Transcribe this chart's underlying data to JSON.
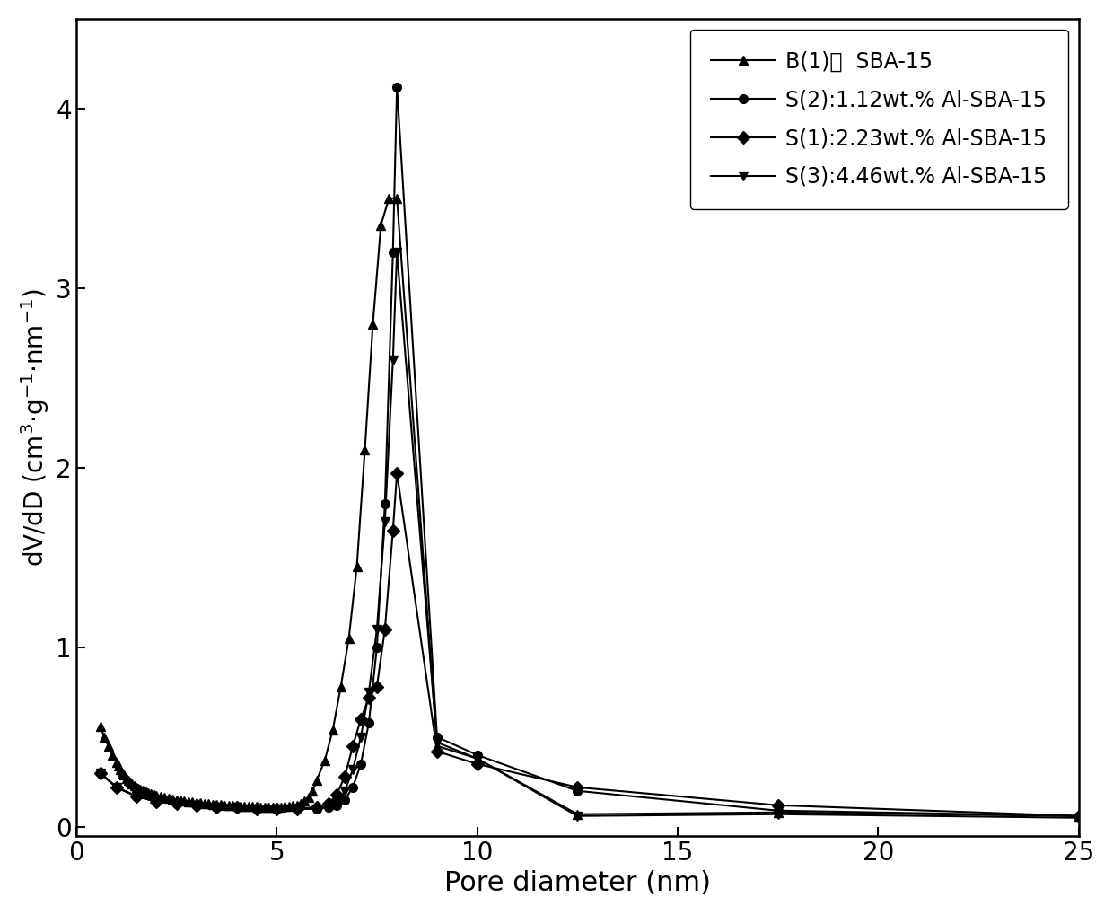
{
  "xlabel": "Pore diameter (nm)",
  "ylabel": "dV/dD (cm$^3$$\\cdot$g$^{-1}$$\\cdot$nm$^{-1}$)",
  "xlim": [
    0,
    25
  ],
  "ylim": [
    -0.05,
    4.5
  ],
  "xticks": [
    0,
    5,
    10,
    15,
    20,
    25
  ],
  "yticks": [
    0,
    1,
    2,
    3,
    4
  ],
  "legend_labels": [
    "B(1)：  SBA-15",
    "S(2):1.12wt.% Al-SBA-15",
    "S(1):2.23wt.% Al-SBA-15",
    "S(3):4.46wt.% Al-SBA-15"
  ],
  "line_color": "#000000",
  "background_color": "#ffffff",
  "B1_x": [
    0.6,
    0.7,
    0.8,
    0.9,
    1.0,
    1.05,
    1.1,
    1.15,
    1.2,
    1.25,
    1.3,
    1.35,
    1.4,
    1.45,
    1.5,
    1.55,
    1.6,
    1.65,
    1.7,
    1.75,
    1.8,
    1.85,
    1.9,
    1.95,
    2.0,
    2.1,
    2.2,
    2.3,
    2.4,
    2.5,
    2.6,
    2.7,
    2.8,
    2.9,
    3.0,
    3.1,
    3.2,
    3.3,
    3.4,
    3.5,
    3.6,
    3.7,
    3.8,
    3.9,
    4.0,
    4.1,
    4.2,
    4.3,
    4.4,
    4.5,
    4.6,
    4.7,
    4.8,
    4.9,
    5.0,
    5.1,
    5.2,
    5.3,
    5.4,
    5.5,
    5.6,
    5.7,
    5.8,
    5.9,
    6.0,
    6.2,
    6.4,
    6.6,
    6.8,
    7.0,
    7.2,
    7.4,
    7.6,
    7.8,
    8.0,
    9.0,
    10.0,
    12.5,
    17.5,
    25.0
  ],
  "B1_y": [
    0.56,
    0.5,
    0.45,
    0.4,
    0.36,
    0.34,
    0.32,
    0.3,
    0.29,
    0.27,
    0.26,
    0.25,
    0.24,
    0.23,
    0.22,
    0.215,
    0.21,
    0.205,
    0.2,
    0.195,
    0.19,
    0.185,
    0.18,
    0.178,
    0.175,
    0.17,
    0.165,
    0.16,
    0.155,
    0.15,
    0.147,
    0.144,
    0.141,
    0.138,
    0.135,
    0.132,
    0.13,
    0.128,
    0.126,
    0.124,
    0.122,
    0.12,
    0.119,
    0.118,
    0.117,
    0.116,
    0.115,
    0.114,
    0.113,
    0.112,
    0.111,
    0.11,
    0.11,
    0.11,
    0.11,
    0.111,
    0.112,
    0.114,
    0.117,
    0.121,
    0.13,
    0.145,
    0.165,
    0.2,
    0.26,
    0.37,
    0.54,
    0.78,
    1.05,
    1.45,
    2.1,
    2.8,
    3.35,
    3.5,
    3.5,
    0.45,
    0.38,
    0.07,
    0.08,
    0.06
  ],
  "S2_x": [
    0.6,
    1.0,
    1.5,
    2.0,
    2.5,
    3.0,
    3.5,
    4.0,
    4.5,
    5.0,
    5.5,
    6.0,
    6.3,
    6.5,
    6.7,
    6.9,
    7.1,
    7.3,
    7.5,
    7.7,
    7.9,
    8.0,
    9.0,
    10.0,
    12.5,
    17.5,
    25.0
  ],
  "S2_y": [
    0.3,
    0.22,
    0.17,
    0.14,
    0.13,
    0.12,
    0.11,
    0.11,
    0.1,
    0.1,
    0.1,
    0.1,
    0.11,
    0.12,
    0.15,
    0.22,
    0.35,
    0.58,
    1.0,
    1.8,
    3.2,
    4.12,
    0.5,
    0.4,
    0.2,
    0.09,
    0.06
  ],
  "S1_x": [
    0.6,
    1.0,
    1.5,
    2.0,
    2.5,
    3.0,
    3.5,
    4.0,
    4.5,
    5.0,
    5.5,
    6.0,
    6.3,
    6.5,
    6.7,
    6.9,
    7.1,
    7.3,
    7.5,
    7.7,
    7.9,
    8.0,
    9.0,
    10.0,
    12.5,
    17.5,
    25.0
  ],
  "S1_y": [
    0.3,
    0.22,
    0.17,
    0.14,
    0.13,
    0.12,
    0.11,
    0.11,
    0.1,
    0.1,
    0.1,
    0.11,
    0.13,
    0.18,
    0.28,
    0.45,
    0.6,
    0.72,
    0.78,
    1.1,
    1.65,
    1.97,
    0.42,
    0.35,
    0.22,
    0.12,
    0.06
  ],
  "S3_x": [
    0.6,
    1.0,
    1.5,
    2.0,
    2.5,
    3.0,
    3.5,
    4.0,
    4.5,
    5.0,
    5.5,
    6.0,
    6.3,
    6.5,
    6.7,
    6.9,
    7.1,
    7.3,
    7.5,
    7.7,
    7.9,
    8.0,
    9.0,
    10.0,
    12.5,
    17.5,
    25.0
  ],
  "S3_y": [
    0.3,
    0.22,
    0.17,
    0.14,
    0.13,
    0.12,
    0.11,
    0.11,
    0.1,
    0.1,
    0.1,
    0.1,
    0.11,
    0.13,
    0.2,
    0.32,
    0.5,
    0.75,
    1.1,
    1.7,
    2.6,
    3.2,
    0.47,
    0.38,
    0.06,
    0.07,
    0.05
  ]
}
